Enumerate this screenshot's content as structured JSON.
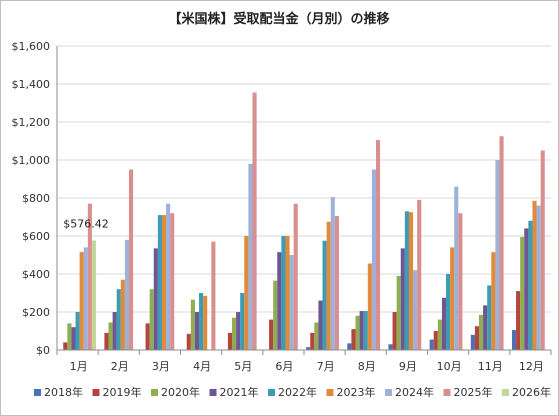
{
  "chart_data": {
    "type": "bar",
    "title": "【米国株】受取配当金（月別）の推移",
    "xlabel": "",
    "ylabel": "",
    "ylim": [
      0,
      1600
    ],
    "yticks": [
      "$0",
      "$200",
      "$400",
      "$600",
      "$800",
      "$1,000",
      "$1,200",
      "$1,400",
      "$1,600"
    ],
    "grid": true,
    "legend_position": "bottom",
    "categories": [
      "1月",
      "2月",
      "3月",
      "4月",
      "5月",
      "6月",
      "7月",
      "8月",
      "9月",
      "10月",
      "11月",
      "12月"
    ],
    "series": [
      {
        "name": "2018年",
        "color": "#4a72b0",
        "values": [
          null,
          null,
          null,
          null,
          null,
          null,
          15,
          35,
          30,
          55,
          80,
          105
        ]
      },
      {
        "name": "2019年",
        "color": "#b5443f",
        "values": [
          40,
          90,
          140,
          85,
          90,
          160,
          90,
          110,
          200,
          100,
          125,
          310
        ]
      },
      {
        "name": "2020年",
        "color": "#8fad52",
        "values": [
          140,
          145,
          320,
          265,
          170,
          365,
          145,
          180,
          390,
          160,
          185,
          595
        ]
      },
      {
        "name": "2021年",
        "color": "#6e5692",
        "values": [
          120,
          200,
          535,
          200,
          200,
          515,
          260,
          205,
          535,
          275,
          235,
          640
        ]
      },
      {
        "name": "2022年",
        "color": "#3b9cb3",
        "values": [
          200,
          320,
          710,
          300,
          300,
          600,
          575,
          205,
          730,
          400,
          340,
          680
        ]
      },
      {
        "name": "2023年",
        "color": "#e08a3a",
        "values": [
          515,
          370,
          710,
          285,
          600,
          600,
          675,
          455,
          725,
          540,
          515,
          785
        ]
      },
      {
        "name": "2024年",
        "color": "#9db1d9",
        "values": [
          540,
          580,
          770,
          null,
          980,
          500,
          805,
          950,
          420,
          860,
          1000,
          760
        ]
      },
      {
        "name": "2025年",
        "color": "#d98f8f",
        "values": [
          770,
          950,
          720,
          570,
          1355,
          770,
          705,
          1105,
          790,
          720,
          1125,
          1050
        ]
      },
      {
        "name": "2026年",
        "color": "#c3d79b",
        "values": [
          576.42,
          null,
          null,
          null,
          null,
          null,
          null,
          null,
          null,
          null,
          null,
          null
        ]
      }
    ],
    "annotations": [
      {
        "series": "2026年",
        "category": "1月",
        "text": "$576.42"
      }
    ]
  }
}
